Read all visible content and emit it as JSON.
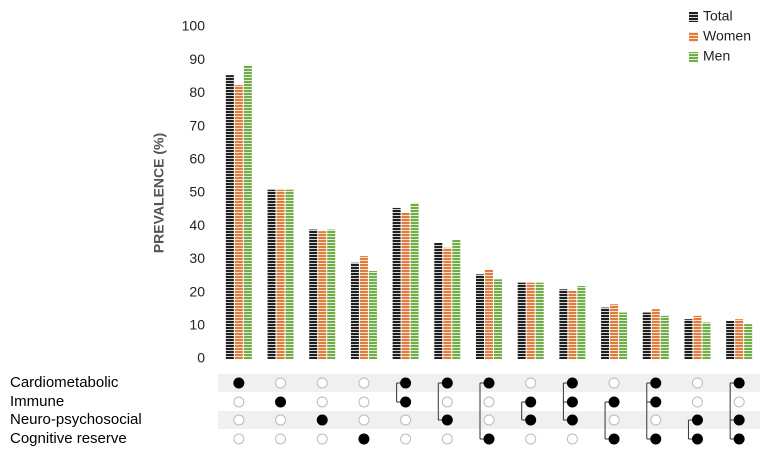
{
  "chart_data": {
    "type": "bar",
    "y_label": "PREVALENCE (%)",
    "ylim": [
      0,
      100
    ],
    "yticks": [
      0,
      10,
      20,
      30,
      40,
      50,
      60,
      70,
      80,
      90,
      100
    ],
    "legend": "top-right",
    "series": [
      {
        "name": "Total",
        "color": "#1f1f1f",
        "values": [
          85.5,
          51,
          39,
          29,
          45.5,
          35,
          25.5,
          23,
          21,
          15.5,
          14,
          12,
          11.5
        ]
      },
      {
        "name": "Women",
        "color": "#e07b39",
        "values": [
          82.5,
          51,
          38.5,
          31,
          44,
          33.5,
          27,
          23,
          20.5,
          16.5,
          15,
          13,
          12
        ]
      },
      {
        "name": "Men",
        "color": "#70ad47",
        "values": [
          88.5,
          51,
          39,
          26.5,
          47,
          36,
          24,
          23,
          22,
          14,
          13,
          11,
          10.5
        ]
      }
    ],
    "sets": [
      "Cardiometabolic",
      "Immune",
      "Neuro-psychosocial",
      "Cognitive reserve"
    ],
    "matrix": [
      [
        1,
        0,
        0,
        0
      ],
      [
        0,
        1,
        0,
        0
      ],
      [
        0,
        0,
        1,
        0
      ],
      [
        0,
        0,
        0,
        1
      ],
      [
        1,
        1,
        0,
        0
      ],
      [
        1,
        0,
        1,
        0
      ],
      [
        1,
        0,
        0,
        1
      ],
      [
        0,
        1,
        1,
        0
      ],
      [
        1,
        1,
        1,
        0
      ],
      [
        0,
        1,
        0,
        1
      ],
      [
        1,
        1,
        0,
        1
      ],
      [
        0,
        0,
        1,
        1
      ],
      [
        1,
        0,
        1,
        1
      ]
    ]
  }
}
